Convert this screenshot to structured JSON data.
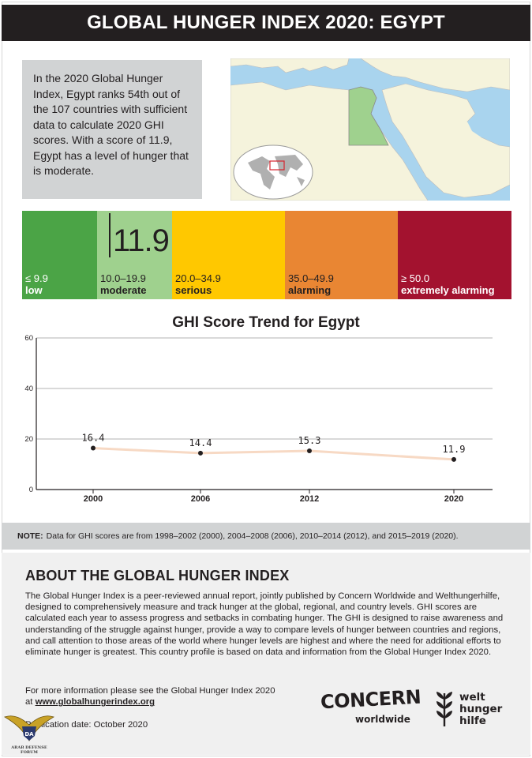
{
  "title": "GLOBAL HUNGER INDEX 2020: EGYPT",
  "intro": "In the 2020 Global Hunger Index, Egypt ranks 54th out of the 107 countries with sufficient data to calculate 2020 GHI scores. With a score of 11.9, Egypt has a level of hunger that is moderate.",
  "scale": {
    "score": "11.9",
    "segments": [
      {
        "range": "≤ 9.9",
        "level": "low",
        "color": "#4ba446"
      },
      {
        "range": "10.0–19.9",
        "level": "moderate",
        "color": "#9fd18e"
      },
      {
        "range": "20.0–34.9",
        "level": "serious",
        "color": "#ffc800"
      },
      {
        "range": "35.0–49.9",
        "level": "alarming",
        "color": "#e98633"
      },
      {
        "range": "≥ 50.0",
        "level": "extremely alarming",
        "color": "#a3122f"
      }
    ]
  },
  "chart_title": "GHI Score Trend for Egypt",
  "chart_data": {
    "type": "line",
    "title": "GHI Score Trend for Egypt",
    "categories": [
      "2000",
      "2006",
      "2012",
      "2020"
    ],
    "values": [
      16.4,
      14.4,
      15.3,
      11.9
    ],
    "data_labels": [
      "16.4",
      "14.4",
      "15.3",
      "11.9"
    ],
    "ylim": [
      0,
      60
    ],
    "yticks": [
      0,
      20,
      40,
      60
    ],
    "grid": true,
    "line_color": "#f7d9c4"
  },
  "note": {
    "label": "NOTE:",
    "text": "Data for GHI scores are from 1998–2002 (2000), 2004–2008 (2006), 2010–2014 (2012), and 2015–2019 (2020)."
  },
  "about": {
    "heading": "ABOUT THE GLOBAL HUNGER INDEX",
    "body": "The Global Hunger Index is a peer-reviewed annual report, jointly published by Concern Worldwide and Welthungerhilfe, designed to comprehensively measure and track hunger at the global, regional, and country levels. GHI scores are calculated each year to assess progress and setbacks in combating hunger. The GHI is designed to raise awareness and understanding of the struggle against hunger, provide a way to compare levels of hunger between countries and regions, and call attention to those areas of the world where hunger levels are highest and where the need for additional efforts to eliminate hunger is greatest. This country profile is based on data and information from the Global Hunger Index 2020.",
    "more_text": "For more information please see the Global Hunger Index 2020",
    "more_at": "at",
    "link": "www.globalhungerindex.org",
    "pubdate": "Publication date: October 2020"
  },
  "logos": {
    "concern_word": "CONCERN",
    "concern_sub": "worldwide",
    "whh_line1": "welt",
    "whh_line2": "hunger",
    "whh_line3": "hilfe"
  },
  "watermark": {
    "initials": "DA",
    "text": "ARAB DEFENSE FORUM"
  },
  "colors": {
    "map_water": "#a9d4ee",
    "map_land": "#f5f3dc",
    "egypt_fill": "#9fd18e"
  }
}
